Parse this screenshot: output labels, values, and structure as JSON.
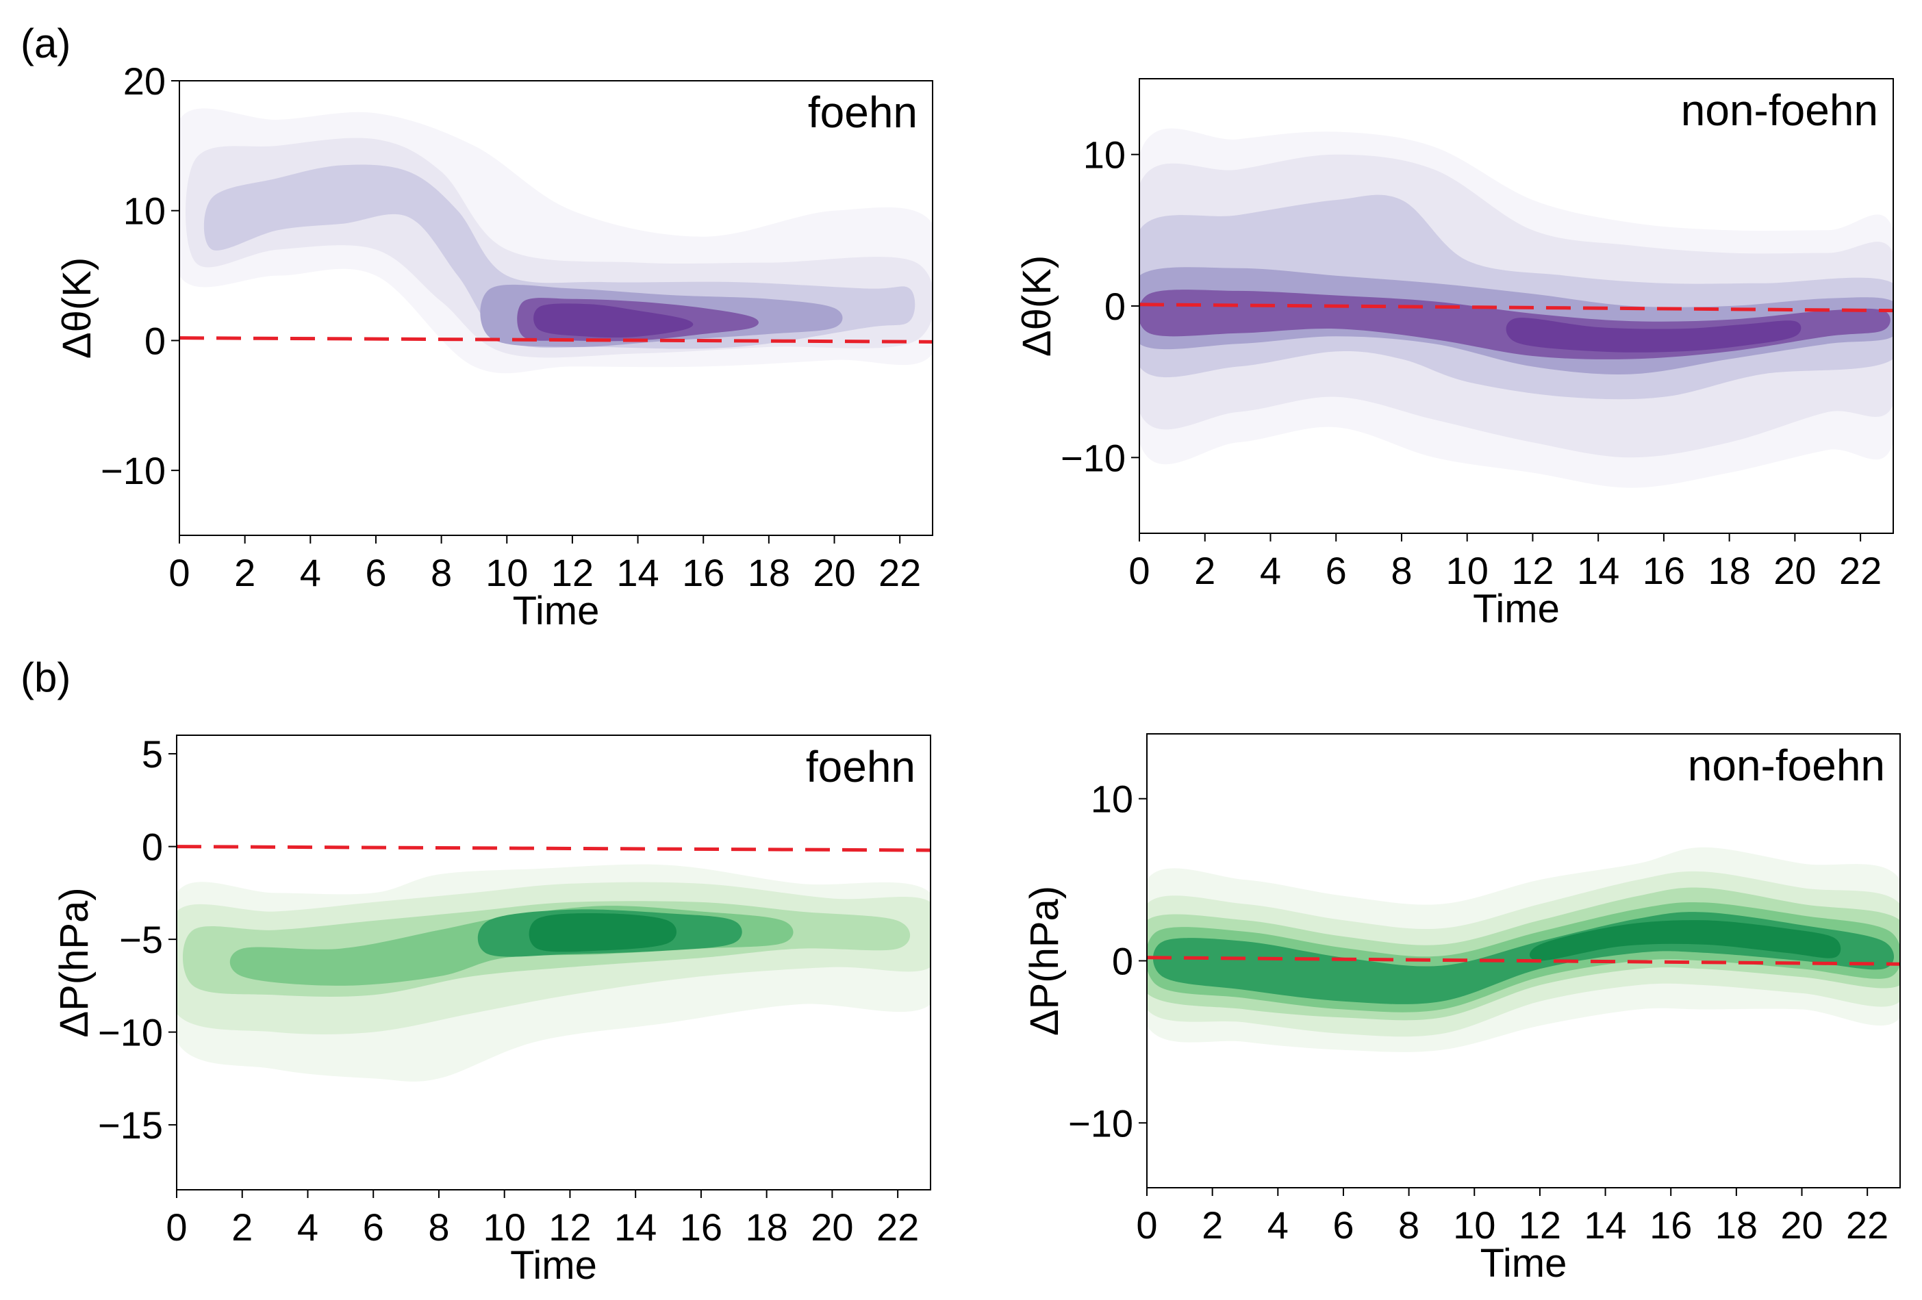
{
  "panel_labels": [
    "(a)",
    "(b)"
  ],
  "chart_data": [
    {
      "type": "density",
      "panel": "(a)",
      "legend": "foehn",
      "xlabel": "Time",
      "ylabel": "Δθ(K)",
      "xlim": [
        0,
        23
      ],
      "ylim": [
        -15,
        20
      ],
      "xticks": [
        0,
        2,
        4,
        6,
        8,
        10,
        12,
        14,
        16,
        18,
        20,
        22
      ],
      "yticks": [
        -10,
        0,
        10,
        20
      ],
      "ytick_labels": [
        "−10",
        "0",
        "10",
        "20"
      ],
      "colormap": "purple",
      "colors": [
        "#f6f5fa",
        "#e9e7f2",
        "#cfcde5",
        "#a8a3cf",
        "#7f5aa8",
        "#6b3d9a"
      ],
      "reference_line": {
        "x": [
          0,
          23
        ],
        "y": [
          0.2,
          -0.1
        ],
        "color": "#e8202a",
        "style": "dashed"
      },
      "density_centerline": {
        "x": [
          0,
          2,
          4,
          6,
          8,
          10,
          12,
          14,
          16,
          18,
          20,
          23
        ],
        "y": [
          9,
          9,
          11,
          11.5,
          10,
          3,
          2,
          1.5,
          2,
          2.5,
          3,
          3
        ]
      },
      "density_peak": {
        "x": 13,
        "y": 1.5
      }
    },
    {
      "type": "density",
      "panel": "(a)",
      "legend": "non-foehn",
      "xlabel": "Time",
      "ylabel": "Δθ(K)",
      "xlim": [
        0,
        23
      ],
      "ylim": [
        -15,
        15
      ],
      "xticks": [
        0,
        2,
        4,
        6,
        8,
        10,
        12,
        14,
        16,
        18,
        20,
        22
      ],
      "yticks": [
        -10,
        0,
        10
      ],
      "ytick_labels": [
        "−10",
        "0",
        "10"
      ],
      "colormap": "purple",
      "colors": [
        "#f6f5fa",
        "#e9e7f2",
        "#cfcde5",
        "#a8a3cf",
        "#7f5aa8",
        "#6b3d9a"
      ],
      "reference_line": {
        "x": [
          0,
          23
        ],
        "y": [
          0.1,
          -0.3
        ],
        "color": "#e8202a",
        "style": "dashed"
      },
      "density_centerline": {
        "x": [
          0,
          2,
          4,
          6,
          8,
          10,
          12,
          14,
          16,
          18,
          20,
          23
        ],
        "y": [
          -1,
          -1,
          -0.5,
          0.5,
          0,
          -1,
          -1.5,
          -2,
          -2.5,
          -2,
          -1.5,
          -0.5
        ]
      },
      "density_peak": {
        "x": 15,
        "y": -2
      }
    },
    {
      "type": "density",
      "panel": "(b)",
      "legend": "foehn",
      "xlabel": "Time",
      "ylabel": "ΔP(hPa)",
      "xlim": [
        0,
        23
      ],
      "ylim": [
        -18.5,
        6
      ],
      "xticks": [
        0,
        2,
        4,
        6,
        8,
        10,
        12,
        14,
        16,
        18,
        20,
        22
      ],
      "yticks": [
        -15,
        -10,
        -5,
        0,
        5
      ],
      "ytick_labels": [
        "−15",
        "−10",
        "−5",
        "0",
        "5"
      ],
      "colormap": "green",
      "colors": [
        "#f1f8ef",
        "#dcefd7",
        "#b5e0b3",
        "#7dc98a",
        "#31a061",
        "#138a4a"
      ],
      "reference_line": {
        "x": [
          0,
          23
        ],
        "y": [
          0,
          -0.2
        ],
        "color": "#e8202a",
        "style": "dashed"
      },
      "density_centerline": {
        "x": [
          0,
          2,
          4,
          6,
          8,
          10,
          12,
          14,
          16,
          18,
          20,
          23
        ],
        "y": [
          -6,
          -6.5,
          -6.5,
          -6.5,
          -6,
          -5,
          -4.8,
          -4.5,
          -4.5,
          -4.5,
          -4.5,
          -4.5
        ]
      },
      "density_peak": {
        "x": 13,
        "y": -4.5
      }
    },
    {
      "type": "density",
      "panel": "(b)",
      "legend": "non-foehn",
      "xlabel": "Time",
      "ylabel": "ΔP(hPa)",
      "xlim": [
        0,
        23
      ],
      "ylim": [
        -14,
        14
      ],
      "xticks": [
        0,
        2,
        4,
        6,
        8,
        10,
        12,
        14,
        16,
        18,
        20,
        22
      ],
      "yticks": [
        -10,
        0,
        10
      ],
      "ytick_labels": [
        "−10",
        "0",
        "10"
      ],
      "colormap": "green",
      "colors": [
        "#f1f8ef",
        "#dcefd7",
        "#b5e0b3",
        "#7dc98a",
        "#31a061",
        "#138a4a"
      ],
      "reference_line": {
        "x": [
          0,
          23
        ],
        "y": [
          0.2,
          -0.2
        ],
        "color": "#e8202a",
        "style": "dashed"
      },
      "density_centerline": {
        "x": [
          0,
          2,
          4,
          6,
          8,
          10,
          12,
          14,
          16,
          18,
          20,
          23
        ],
        "y": [
          0.5,
          0.5,
          0,
          -1,
          -1.5,
          -1,
          0,
          1,
          2,
          2,
          1.5,
          0.5
        ]
      },
      "density_peak": {
        "x": 16,
        "y": 2
      }
    }
  ]
}
